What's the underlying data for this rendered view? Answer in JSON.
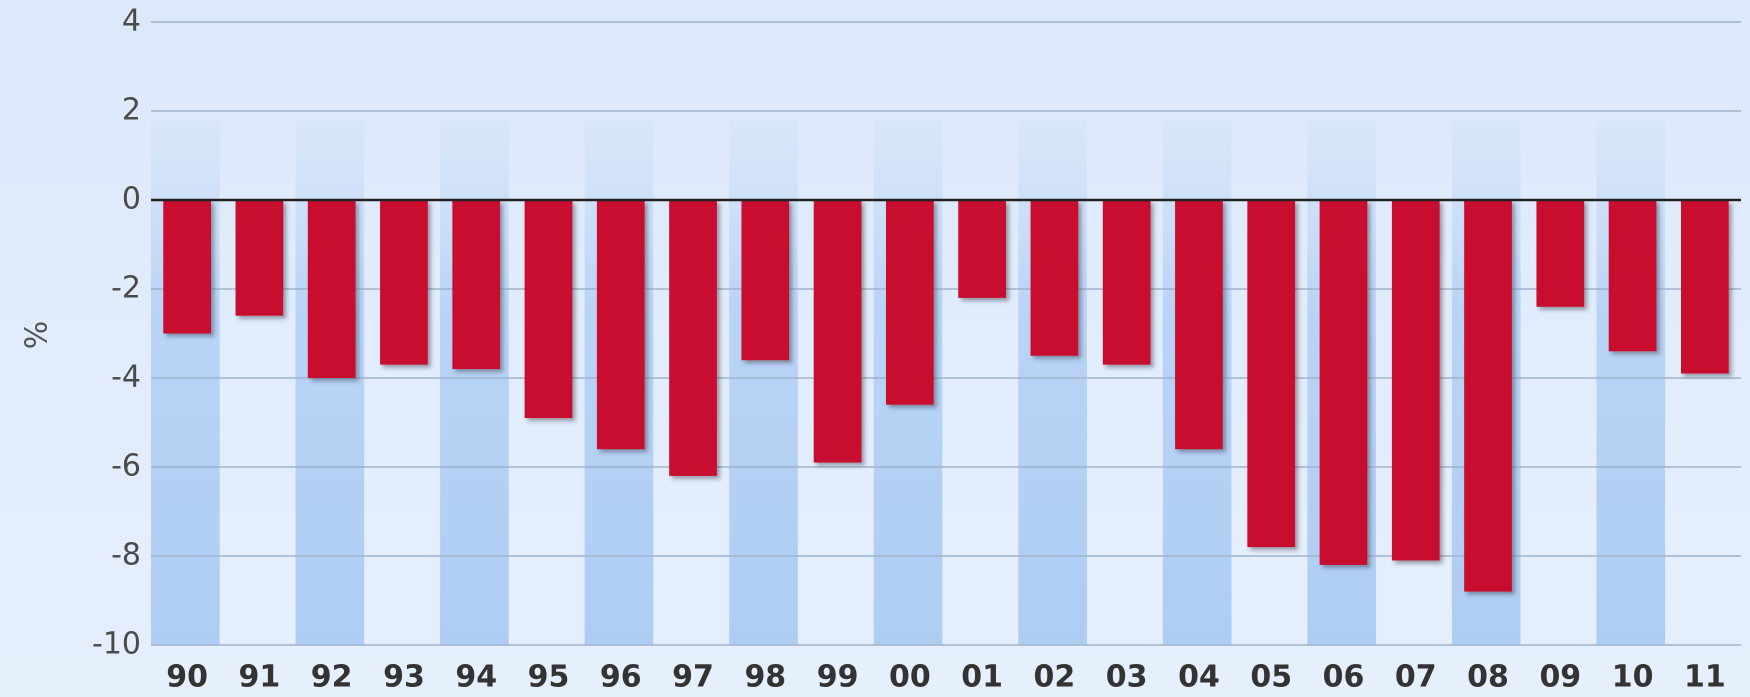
{
  "chart_data": {
    "type": "bar",
    "y_label": "%",
    "categories": [
      "90",
      "91",
      "92",
      "93",
      "94",
      "95",
      "96",
      "97",
      "98",
      "99",
      "00",
      "01",
      "02",
      "03",
      "04",
      "05",
      "06",
      "07",
      "08",
      "09",
      "10",
      "11"
    ],
    "values": [
      -3.0,
      -2.6,
      -4.0,
      -3.7,
      -3.8,
      -4.9,
      -5.6,
      -6.2,
      -3.6,
      -5.9,
      -4.6,
      -2.2,
      -3.5,
      -3.7,
      -5.6,
      -7.8,
      -8.2,
      -8.1,
      -8.8,
      -2.4,
      -3.4,
      -3.9
    ],
    "color": "#c8082e",
    "ylim": [
      -10,
      4
    ],
    "yticks": [
      -10,
      -8,
      -6,
      -4,
      -2,
      0,
      2,
      4
    ],
    "grid": true
  }
}
